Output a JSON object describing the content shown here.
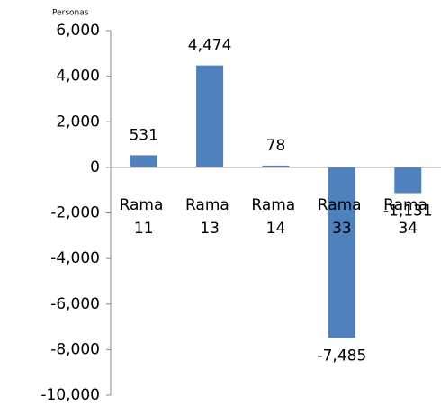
{
  "chart_data": {
    "type": "bar",
    "y_label": "Personas",
    "categories": [
      "Rama 11",
      "Rama 13",
      "Rama 14",
      "Rama 33",
      "Rama 34"
    ],
    "values": [
      531,
      4474,
      78,
      -7485,
      -1131
    ],
    "value_labels": [
      "531",
      "4,474",
      "78",
      "-7,485",
      "-1,131"
    ],
    "color": "#4f81bd",
    "ylim": [
      -10000,
      6000
    ],
    "yticks": [
      {
        "value": -10000,
        "label": "-10,000"
      },
      {
        "value": -8000,
        "label": "-8,000"
      },
      {
        "value": -6000,
        "label": "-6,000"
      },
      {
        "value": -4000,
        "label": "-4,000"
      },
      {
        "value": -2000,
        "label": "-2,000"
      },
      0,
      {
        "value": 2000,
        "label": "2,000"
      },
      {
        "value": 4000,
        "label": "4,000"
      },
      {
        "value": 6000,
        "label": "6,000"
      }
    ],
    "grid": false
  }
}
